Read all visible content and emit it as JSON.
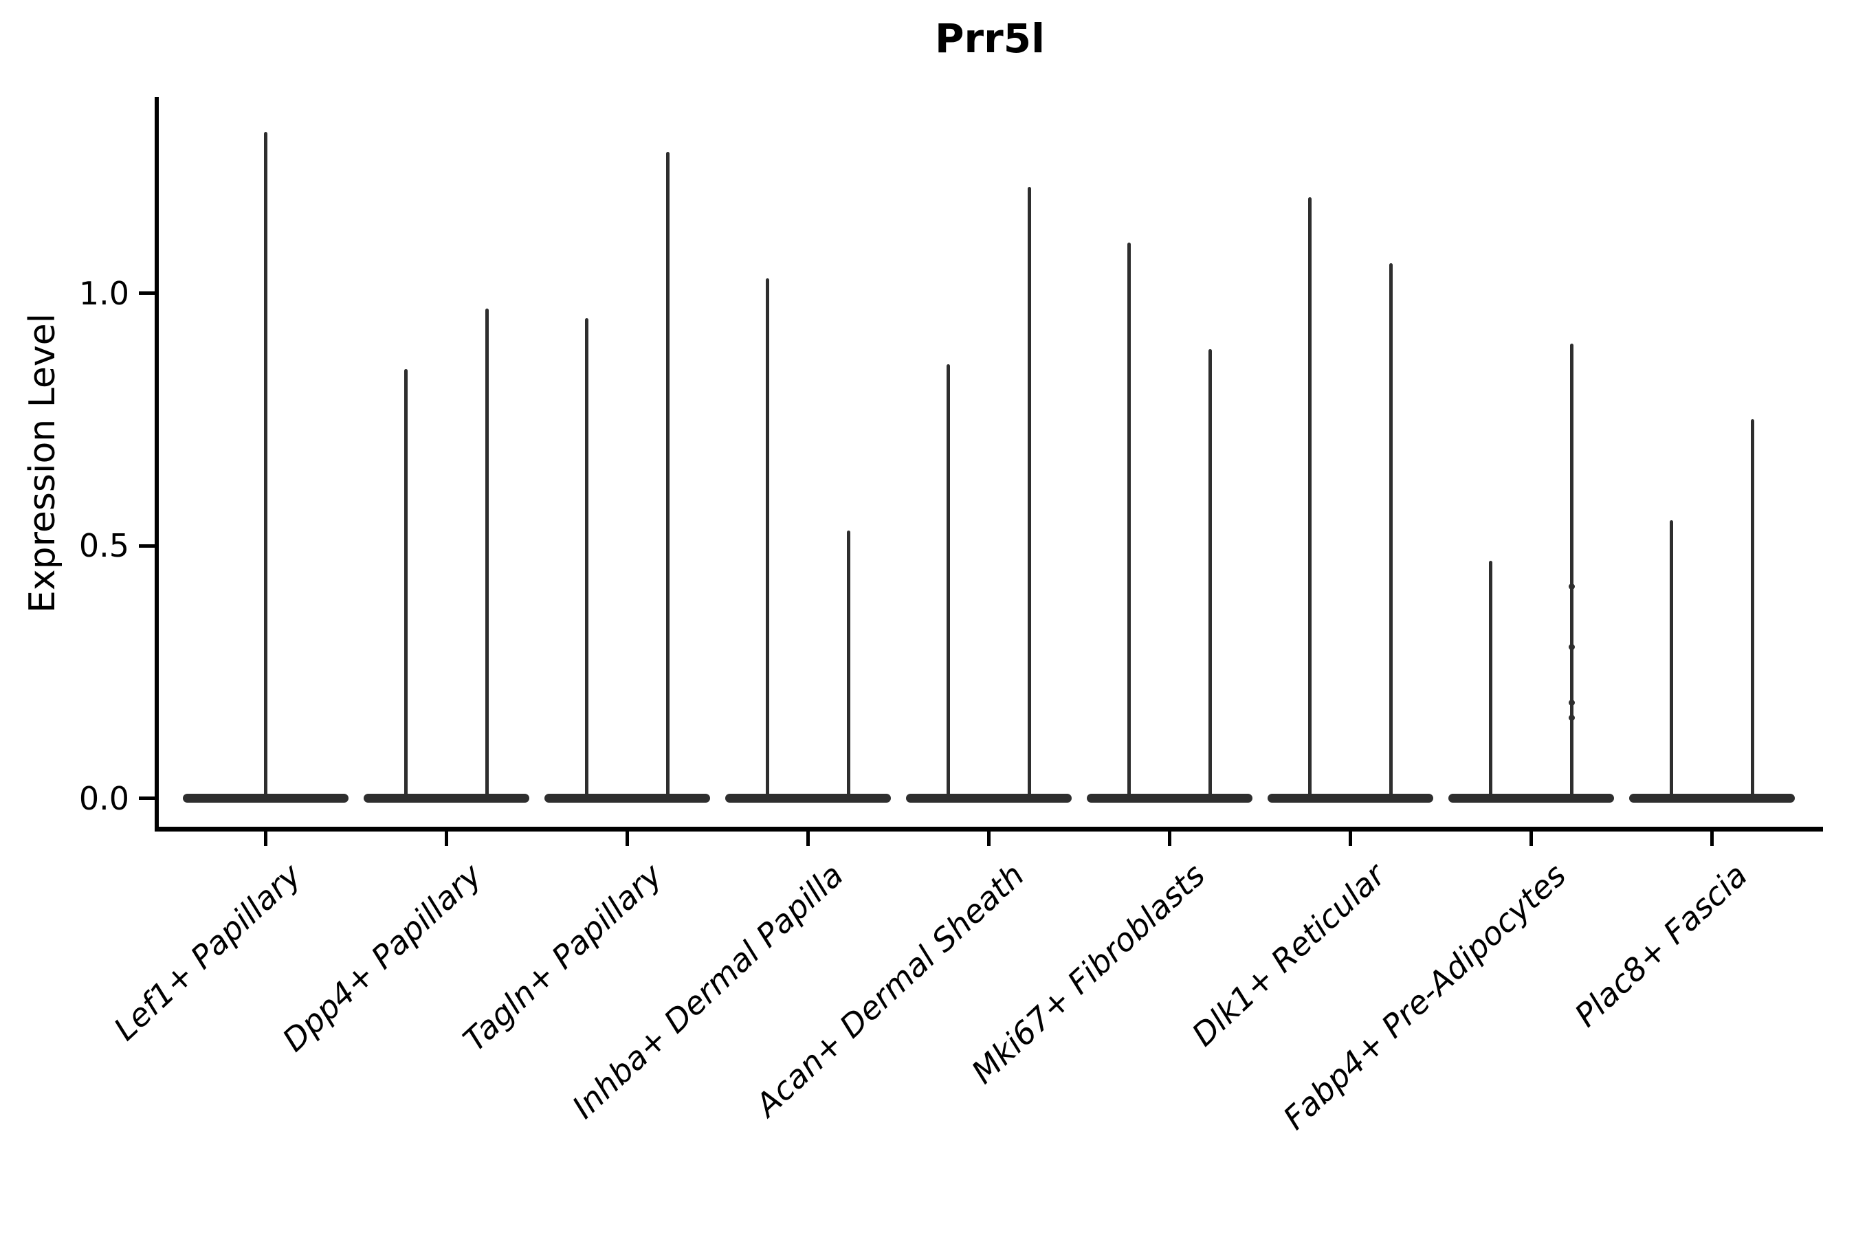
{
  "figure": {
    "title": "Prr5l",
    "ylabel": "Expression Level"
  },
  "chart_data": {
    "type": "violin",
    "title": "Prr5l",
    "xlabel": "",
    "ylabel": "Expression Level",
    "ylim": [
      -0.06,
      1.39
    ],
    "yticks": [
      "0.0",
      "0.5",
      "1.0"
    ],
    "ytick_values": [
      0.0,
      0.5,
      1.0
    ],
    "grid": false,
    "legend": "none",
    "violin_color": "#2e2e2e",
    "axis_color": "#000000",
    "categories": [
      "Lef1+ Papillary",
      "Dpp4+ Papillary",
      "Tagln+ Papillary",
      "Inhba+ Dermal Papilla",
      "Acan+ Dermal Sheath",
      "Mki67+ Fibroblasts",
      "Dlk1+ Reticular",
      "Fabp4+ Pre-Adipocytes",
      "Plac8+ Fascia"
    ],
    "groups": [
      {
        "category": "Lef1+ Papillary",
        "violins": [
          {
            "side": "center",
            "max": 1.32,
            "min": 0.0
          }
        ]
      },
      {
        "category": "Dpp4+ Papillary",
        "violins": [
          {
            "side": "left",
            "max": 0.85,
            "min": 0.0
          },
          {
            "side": "right",
            "max": 0.97,
            "min": 0.0
          }
        ]
      },
      {
        "category": "Tagln+ Papillary",
        "violins": [
          {
            "side": "left",
            "max": 0.95,
            "min": 0.0
          },
          {
            "side": "right",
            "max": 1.28,
            "min": 0.0
          }
        ]
      },
      {
        "category": "Inhba+ Dermal Papilla",
        "violins": [
          {
            "side": "left",
            "max": 1.03,
            "min": 0.0
          },
          {
            "side": "right",
            "max": 0.53,
            "min": 0.0
          }
        ]
      },
      {
        "category": "Acan+ Dermal Sheath",
        "violins": [
          {
            "side": "left",
            "max": 0.86,
            "min": 0.0
          },
          {
            "side": "right",
            "max": 1.21,
            "min": 0.0
          }
        ]
      },
      {
        "category": "Mki67+ Fibroblasts",
        "violins": [
          {
            "side": "left",
            "max": 1.1,
            "min": 0.0
          },
          {
            "side": "right",
            "max": 0.89,
            "min": 0.0
          }
        ]
      },
      {
        "category": "Dlk1+ Reticular",
        "violins": [
          {
            "side": "left",
            "max": 1.19,
            "min": 0.0
          },
          {
            "side": "right",
            "max": 1.06,
            "min": 0.0
          }
        ]
      },
      {
        "category": "Fabp4+ Pre-Adipocytes",
        "violins": [
          {
            "side": "left",
            "max": 0.47,
            "min": 0.0
          },
          {
            "side": "right",
            "max": 0.9,
            "min": 0.0,
            "jitter_dots": [
              0.42,
              0.3,
              0.19,
              0.16
            ]
          }
        ]
      },
      {
        "category": "Plac8+ Fascia",
        "violins": [
          {
            "side": "left",
            "max": 0.55,
            "min": 0.0
          },
          {
            "side": "right",
            "max": 0.75,
            "min": 0.0
          }
        ]
      }
    ]
  }
}
